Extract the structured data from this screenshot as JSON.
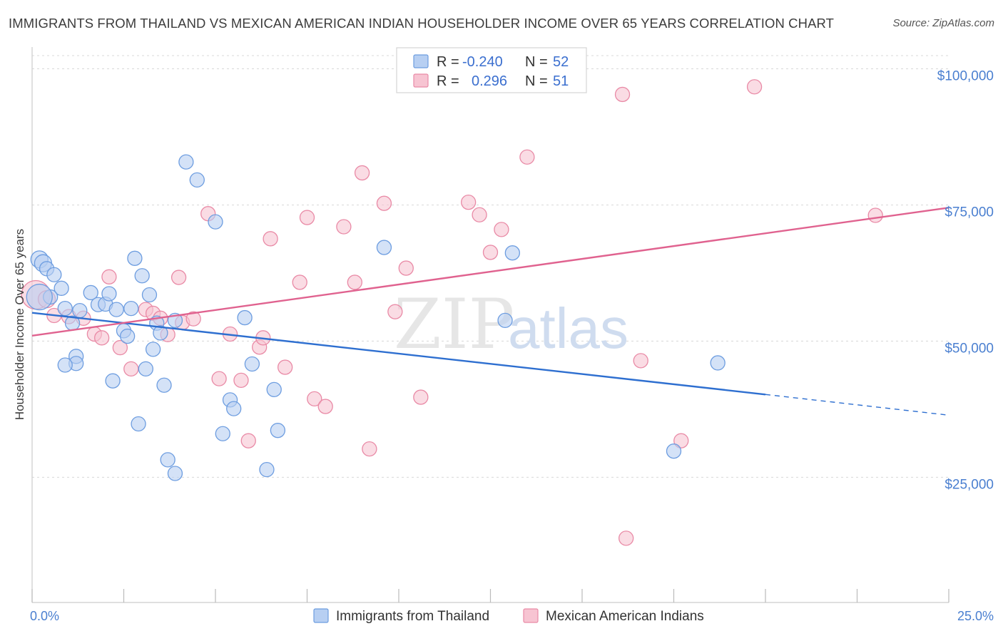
{
  "title": "IMMIGRANTS FROM THAILAND VS MEXICAN AMERICAN INDIAN HOUSEHOLDER INCOME OVER 65 YEARS CORRELATION CHART",
  "source": "Source: ZipAtlas.com",
  "watermark": {
    "zip": "ZIP",
    "atlas": "atlas"
  },
  "colors": {
    "blue_fill": "#b7cff2",
    "blue_stroke": "#6d9de0",
    "blue_line": "#2e6fd0",
    "pink_fill": "#f7c4d2",
    "pink_stroke": "#e98aa6",
    "pink_line": "#e0628f",
    "grid": "#d8d8d8",
    "tick_text": "#4a7fd0"
  },
  "chart_data": {
    "type": "scatter",
    "title": "IMMIGRANTS FROM THAILAND VS MEXICAN AMERICAN INDIAN HOUSEHOLDER INCOME OVER 65 YEARS CORRELATION CHART",
    "xlabel": "",
    "ylabel": "Householder Income Over 65 years",
    "xlim": [
      0,
      25
    ],
    "ylim": [
      2000,
      104000
    ],
    "x_tick_labels": [
      "0.0%",
      "25.0%"
    ],
    "y_ticks": [
      25000,
      50000,
      75000,
      100000
    ],
    "y_tick_labels": [
      "$25,000",
      "$50,000",
      "$75,000",
      "$100,000"
    ],
    "legend": [
      {
        "name": "Immigrants from Thailand",
        "r_label": "R = ",
        "r": "-0.240",
        "n_label": "N = ",
        "n": "52"
      },
      {
        "name": "Mexican American Indians",
        "r_label": "R = ",
        "r": "0.296",
        "n_label": "N = ",
        "n": "51"
      }
    ],
    "series": [
      {
        "name": "Immigrants from Thailand",
        "color": "blue",
        "trend": {
          "x0": 0,
          "y0": 55200,
          "x1": 20,
          "y1": 40200,
          "dash_x1": 25,
          "dash_y1": 36400
        },
        "points": [
          [
            0.2,
            65000,
            12
          ],
          [
            0.3,
            64300,
            12
          ],
          [
            0.4,
            63300,
            10
          ],
          [
            0.6,
            62200,
            10
          ],
          [
            0.8,
            59700,
            10
          ],
          [
            0.5,
            58100,
            10
          ],
          [
            0.2,
            58100,
            18
          ],
          [
            0.9,
            56000,
            10
          ],
          [
            1.1,
            53300,
            10
          ],
          [
            1.3,
            55600,
            10
          ],
          [
            1.6,
            58900,
            10
          ],
          [
            1.8,
            56700,
            10
          ],
          [
            2.0,
            56800,
            10
          ],
          [
            2.1,
            58700,
            10
          ],
          [
            2.3,
            55800,
            10
          ],
          [
            2.5,
            51900,
            10
          ],
          [
            2.6,
            50900,
            10
          ],
          [
            2.7,
            56000,
            10
          ],
          [
            2.8,
            65200,
            10
          ],
          [
            3.0,
            62000,
            10
          ],
          [
            3.2,
            58500,
            10
          ],
          [
            3.3,
            48500,
            10
          ],
          [
            3.4,
            53300,
            10
          ],
          [
            3.5,
            51500,
            10
          ],
          [
            3.9,
            53800,
            10
          ],
          [
            4.2,
            82900,
            10
          ],
          [
            4.5,
            79600,
            10
          ],
          [
            5.0,
            71900,
            10
          ],
          [
            5.2,
            33000,
            10
          ],
          [
            5.4,
            39200,
            10
          ],
          [
            5.5,
            37600,
            10
          ],
          [
            5.8,
            54300,
            10
          ],
          [
            6.0,
            45800,
            10
          ],
          [
            6.6,
            41100,
            10
          ],
          [
            6.7,
            33600,
            10
          ],
          [
            6.4,
            26400,
            10
          ],
          [
            1.2,
            47200,
            10
          ],
          [
            1.2,
            45900,
            10
          ],
          [
            0.9,
            45600,
            10
          ],
          [
            2.2,
            42700,
            10
          ],
          [
            2.9,
            34800,
            10
          ],
          [
            3.1,
            44900,
            10
          ],
          [
            3.6,
            41900,
            10
          ],
          [
            3.7,
            28200,
            10
          ],
          [
            3.9,
            25700,
            10
          ],
          [
            9.6,
            67200,
            10
          ],
          [
            13.1,
            66200,
            10
          ],
          [
            12.9,
            53800,
            10
          ],
          [
            18.7,
            46000,
            10
          ],
          [
            17.5,
            29800,
            10
          ]
        ]
      },
      {
        "name": "Mexican American Indians",
        "color": "pink",
        "trend": {
          "x0": 0,
          "y0": 51000,
          "x1": 25,
          "y1": 74500
        },
        "points": [
          [
            0.1,
            58500,
            20
          ],
          [
            0.4,
            57700,
            12
          ],
          [
            0.6,
            54700,
            10
          ],
          [
            1.0,
            54500,
            10
          ],
          [
            1.4,
            54200,
            10
          ],
          [
            1.7,
            51300,
            10
          ],
          [
            1.9,
            50600,
            10
          ],
          [
            2.1,
            61800,
            10
          ],
          [
            2.4,
            48800,
            10
          ],
          [
            2.7,
            44900,
            10
          ],
          [
            3.1,
            55800,
            10
          ],
          [
            3.3,
            55100,
            10
          ],
          [
            3.5,
            54200,
            10
          ],
          [
            3.7,
            51200,
            10
          ],
          [
            4.1,
            53400,
            10
          ],
          [
            4.0,
            61700,
            10
          ],
          [
            4.4,
            54100,
            10
          ],
          [
            4.8,
            73400,
            10
          ],
          [
            5.1,
            43100,
            10
          ],
          [
            5.4,
            51300,
            10
          ],
          [
            5.7,
            42800,
            10
          ],
          [
            5.9,
            31700,
            10
          ],
          [
            6.2,
            48900,
            10
          ],
          [
            6.3,
            50600,
            10
          ],
          [
            6.5,
            68800,
            10
          ],
          [
            6.9,
            45200,
            10
          ],
          [
            7.3,
            60800,
            10
          ],
          [
            7.5,
            72700,
            10
          ],
          [
            7.7,
            39400,
            10
          ],
          [
            8.0,
            38000,
            10
          ],
          [
            8.5,
            71000,
            10
          ],
          [
            8.8,
            60800,
            10
          ],
          [
            9.0,
            80900,
            10
          ],
          [
            9.2,
            30200,
            10
          ],
          [
            9.6,
            75300,
            10
          ],
          [
            9.9,
            55400,
            10
          ],
          [
            10.2,
            63400,
            10
          ],
          [
            10.6,
            39700,
            10
          ],
          [
            11.9,
            75500,
            10
          ],
          [
            12.2,
            73200,
            10
          ],
          [
            12.5,
            66300,
            10
          ],
          [
            12.8,
            70500,
            10
          ],
          [
            13.5,
            83800,
            10
          ],
          [
            16.1,
            95300,
            10
          ],
          [
            16.2,
            13800,
            10
          ],
          [
            16.6,
            46400,
            10
          ],
          [
            17.7,
            31700,
            10
          ],
          [
            19.7,
            96700,
            10
          ],
          [
            23.0,
            73100,
            10
          ]
        ]
      }
    ]
  }
}
